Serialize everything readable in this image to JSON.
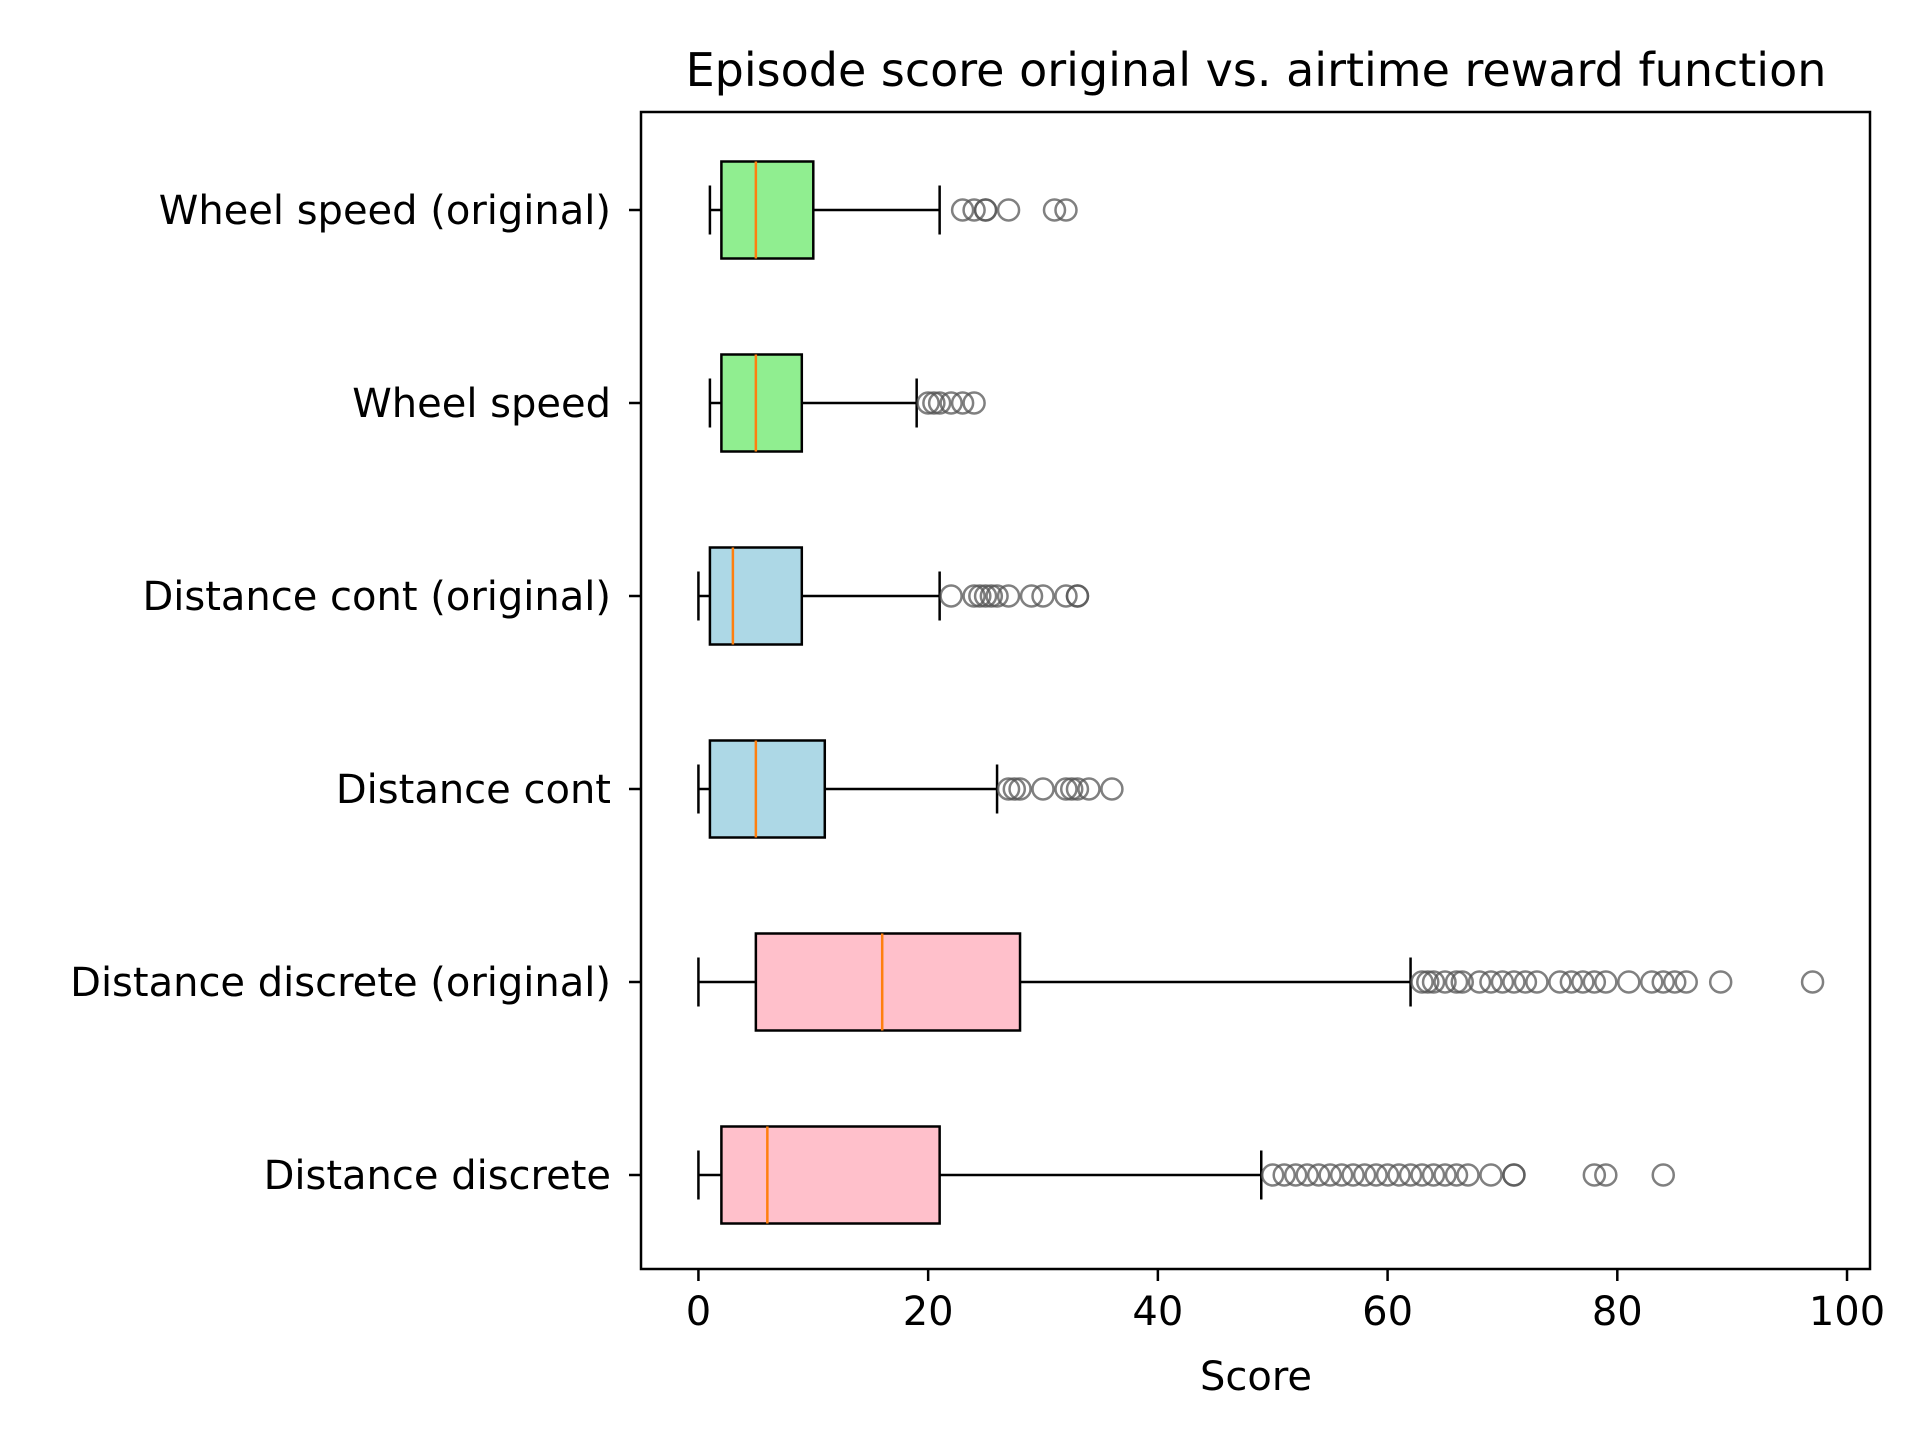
{
  "chart_data": {
    "type": "boxplot",
    "orientation": "horizontal",
    "title": "Episode score original vs. airtime reward function",
    "xlabel": "Score",
    "ylabel": "",
    "xlim": [
      -5,
      102
    ],
    "xticks": [
      0,
      20,
      40,
      60,
      80,
      100
    ],
    "grid": false,
    "colors": {
      "median": "#ff7f0e",
      "outlier": "#555555",
      "whisker": "#000000"
    },
    "series": [
      {
        "name": "Wheel speed (original)",
        "color": "#90ee90",
        "whisker_low": 1,
        "q1": 2,
        "median": 5,
        "q3": 10,
        "whisker_high": 21,
        "outliers": [
          23,
          24,
          25,
          25,
          27,
          31,
          32
        ]
      },
      {
        "name": "Wheel speed",
        "color": "#90ee90",
        "whisker_low": 1,
        "q1": 2,
        "median": 5,
        "q3": 9,
        "whisker_high": 19,
        "outliers": [
          20,
          20.5,
          21,
          22,
          23,
          24
        ]
      },
      {
        "name": "Distance cont (original)",
        "color": "#add8e6",
        "whisker_low": 0,
        "q1": 1,
        "median": 3,
        "q3": 9,
        "whisker_high": 21,
        "outliers": [
          22,
          24,
          24.5,
          25,
          25.5,
          26,
          27,
          29,
          30,
          32,
          33,
          33
        ]
      },
      {
        "name": "Distance cont",
        "color": "#add8e6",
        "whisker_low": 0,
        "q1": 1,
        "median": 5,
        "q3": 11,
        "whisker_high": 26,
        "outliers": [
          27,
          27.5,
          28,
          30,
          32,
          32.5,
          33,
          34,
          36
        ]
      },
      {
        "name": "Distance discrete (original)",
        "color": "#ffc0cb",
        "whisker_low": 0,
        "q1": 5,
        "median": 16,
        "q3": 28,
        "whisker_high": 62,
        "outliers": [
          63,
          63.5,
          64,
          65,
          66,
          66.5,
          68,
          69,
          70,
          71,
          72,
          73,
          75,
          76,
          77,
          78,
          79,
          81,
          83,
          84,
          85,
          86,
          89,
          97
        ]
      },
      {
        "name": "Distance discrete",
        "color": "#ffc0cb",
        "whisker_low": 0,
        "q1": 2,
        "median": 6,
        "q3": 21,
        "whisker_high": 49,
        "outliers": [
          50,
          51,
          52,
          53,
          54,
          55,
          56,
          57,
          58,
          59,
          60,
          61,
          62,
          63,
          64,
          65,
          66,
          67,
          69,
          71,
          71,
          78,
          79,
          84
        ]
      }
    ]
  }
}
